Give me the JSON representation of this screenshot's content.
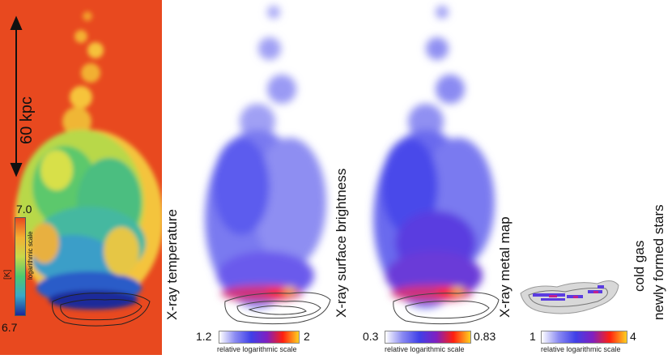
{
  "panels": {
    "temperature": {
      "label": "X-ray temperature",
      "scale_text": "60 kpc",
      "colorbar": {
        "min": "6.7",
        "max": "7.0",
        "unit": "[K]",
        "note": "logarithmic scale"
      }
    },
    "brightness": {
      "label": "X-ray surface brightness",
      "colorbar": {
        "min": "1.2",
        "max": "2",
        "note": "relative logarithmic scale"
      }
    },
    "metal": {
      "label": "X-ray metal map",
      "colorbar": {
        "min": "0.3",
        "max": "0.83",
        "note": "relative logarithmic scale"
      }
    },
    "cold": {
      "label_line1": "cold gas",
      "label_line2": "newly formed stars",
      "colorbar": {
        "min": "1",
        "max": "4",
        "note": "relative logarithmic scale"
      }
    }
  },
  "colors": {
    "temp_background": "#e8491f",
    "blue_map": "#5a5af0",
    "hot": "#ff3010"
  }
}
